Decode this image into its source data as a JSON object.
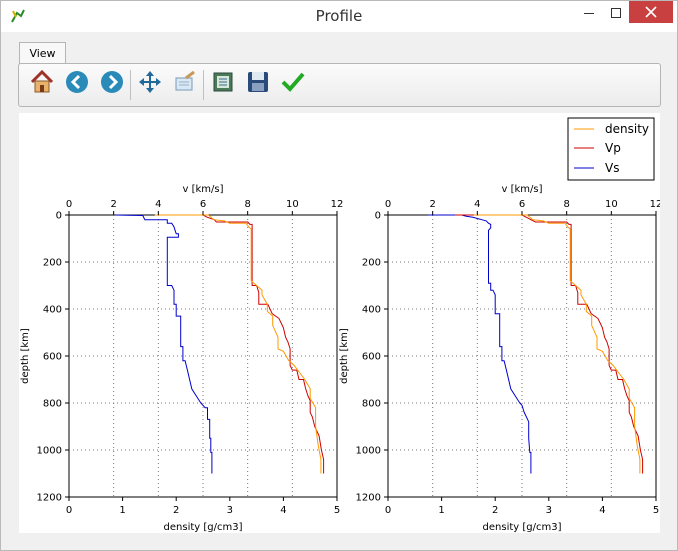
{
  "window": {
    "title": "Profile"
  },
  "tabs": [
    {
      "label": "View"
    }
  ],
  "toolbar": {
    "buttons": [
      {
        "name": "home-button",
        "icon": "home-icon",
        "tooltip": ""
      },
      {
        "name": "back-button",
        "icon": "back-arrow-icon"
      },
      {
        "name": "forward-button",
        "icon": "forward-arrow-icon"
      },
      {
        "name": "pan-button",
        "icon": "move-icon"
      },
      {
        "name": "zoom-button",
        "icon": "zoom-rect-icon"
      },
      {
        "name": "configure-button",
        "icon": "configure-subplots-icon"
      },
      {
        "name": "save-button",
        "icon": "save-disk-icon"
      },
      {
        "name": "confirm-button",
        "icon": "checkmark-icon"
      }
    ]
  },
  "colors": {
    "density": "#ff9900",
    "Vp": "#cc0000",
    "Vs": "#0000cc"
  },
  "chart_data": [
    {
      "type": "line",
      "top_xlabel": "v [km/s]",
      "bottom_xlabel": "density [g/cm3]",
      "ylabel": "depth [km]",
      "top_xlim": [
        0,
        12
      ],
      "top_xticks": [
        "0",
        "2",
        "4",
        "6",
        "8",
        "10",
        "12"
      ],
      "bottom_xlim": [
        0,
        5
      ],
      "bottom_xticks": [
        "0",
        "1",
        "2",
        "3",
        "4",
        "5"
      ],
      "ylim": [
        1200,
        0
      ],
      "yticks": [
        "0",
        "200",
        "400",
        "600",
        "800",
        "1000",
        "1200"
      ],
      "grid": true,
      "legend": {
        "placement": "top-right",
        "entries": [
          "density",
          "Vp",
          "Vs"
        ]
      },
      "series": [
        {
          "name": "Vs",
          "axis": "v",
          "points": [
            [
              2.1,
              0
            ],
            [
              3.3,
              2
            ],
            [
              3.4,
              20
            ],
            [
              4.4,
              20
            ],
            [
              4.4,
              35
            ],
            [
              4.6,
              35
            ],
            [
              4.7,
              50
            ],
            [
              4.8,
              80
            ],
            [
              4.9,
              80
            ],
            [
              4.9,
              95
            ],
            [
              4.8,
              95
            ],
            [
              4.4,
              95
            ],
            [
              4.4,
              300
            ],
            [
              4.6,
              300
            ],
            [
              4.7,
              320
            ],
            [
              4.7,
              380
            ],
            [
              4.8,
              380
            ],
            [
              4.8,
              430
            ],
            [
              5.0,
              430
            ],
            [
              5.0,
              560
            ],
            [
              5.1,
              560
            ],
            [
              5.1,
              620
            ],
            [
              5.2,
              620
            ],
            [
              5.3,
              660
            ],
            [
              5.4,
              700
            ],
            [
              5.5,
              740
            ],
            [
              5.7,
              770
            ],
            [
              5.9,
              800
            ],
            [
              6.1,
              820
            ],
            [
              6.2,
              820
            ],
            [
              6.2,
              870
            ],
            [
              6.3,
              870
            ],
            [
              6.3,
              950
            ],
            [
              6.35,
              950
            ],
            [
              6.35,
              1010
            ],
            [
              6.4,
              1010
            ],
            [
              6.4,
              1100
            ]
          ]
        },
        {
          "name": "Vp",
          "axis": "v",
          "points": [
            [
              3.9,
              0
            ],
            [
              6.0,
              0
            ],
            [
              6.2,
              10
            ],
            [
              6.5,
              20
            ],
            [
              6.6,
              30
            ],
            [
              8.0,
              30
            ],
            [
              8.1,
              40
            ],
            [
              8.2,
              40
            ],
            [
              8.2,
              300
            ],
            [
              8.4,
              300
            ],
            [
              8.5,
              330
            ],
            [
              8.5,
              380
            ],
            [
              8.9,
              380
            ],
            [
              9.1,
              420
            ],
            [
              9.4,
              440
            ],
            [
              9.5,
              460
            ],
            [
              9.6,
              480
            ],
            [
              9.7,
              520
            ],
            [
              9.8,
              540
            ],
            [
              9.9,
              570
            ],
            [
              9.9,
              640
            ],
            [
              10.0,
              660
            ],
            [
              10.2,
              660
            ],
            [
              10.3,
              700
            ],
            [
              10.5,
              700
            ],
            [
              10.6,
              740
            ],
            [
              10.7,
              770
            ],
            [
              10.8,
              790
            ],
            [
              10.8,
              840
            ],
            [
              10.9,
              860
            ],
            [
              11.0,
              900
            ],
            [
              11.2,
              940
            ],
            [
              11.3,
              1000
            ],
            [
              11.4,
              1040
            ],
            [
              11.4,
              1100
            ]
          ]
        },
        {
          "name": "density",
          "axis": "density",
          "points": [
            [
              1.6,
              0
            ],
            [
              2.6,
              0
            ],
            [
              2.7,
              20
            ],
            [
              2.9,
              25
            ],
            [
              3.0,
              35
            ],
            [
              3.3,
              35
            ],
            [
              3.35,
              50
            ],
            [
              3.4,
              60
            ],
            [
              3.4,
              170
            ],
            [
              3.4,
              280
            ],
            [
              3.5,
              300
            ],
            [
              3.6,
              320
            ],
            [
              3.6,
              340
            ],
            [
              3.7,
              380
            ],
            [
              3.7,
              410
            ],
            [
              3.8,
              430
            ],
            [
              3.8,
              470
            ],
            [
              3.9,
              520
            ],
            [
              3.9,
              570
            ],
            [
              4.0,
              580
            ],
            [
              4.1,
              620
            ],
            [
              4.2,
              640
            ],
            [
              4.3,
              670
            ],
            [
              4.4,
              700
            ],
            [
              4.5,
              740
            ],
            [
              4.5,
              780
            ],
            [
              4.6,
              820
            ],
            [
              4.6,
              900
            ],
            [
              4.65,
              980
            ],
            [
              4.7,
              1040
            ],
            [
              4.7,
              1100
            ]
          ]
        }
      ]
    },
    {
      "type": "line",
      "top_xlabel": "v [km/s]",
      "bottom_xlabel": "density [g/cm3]",
      "ylabel": "depth [km]",
      "top_xlim": [
        0,
        12
      ],
      "top_xticks": [
        "0",
        "2",
        "4",
        "6",
        "8",
        "10",
        "12"
      ],
      "bottom_xlim": [
        0,
        5
      ],
      "bottom_xticks": [
        "0",
        "1",
        "2",
        "3",
        "4",
        "5"
      ],
      "ylim": [
        1200,
        0
      ],
      "yticks": [
        "0",
        "200",
        "400",
        "600",
        "800",
        "1000",
        "1200"
      ],
      "grid": true,
      "series": [
        {
          "name": "Vs",
          "axis": "v",
          "points": [
            [
              1.8,
              0
            ],
            [
              3.3,
              0
            ],
            [
              3.5,
              5
            ],
            [
              3.8,
              10
            ],
            [
              4.0,
              15
            ],
            [
              4.2,
              20
            ],
            [
              4.4,
              25
            ],
            [
              4.5,
              35
            ],
            [
              4.6,
              40
            ],
            [
              4.6,
              55
            ],
            [
              4.5,
              65
            ],
            [
              4.5,
              290
            ],
            [
              4.6,
              290
            ],
            [
              4.6,
              320
            ],
            [
              4.7,
              320
            ],
            [
              4.8,
              340
            ],
            [
              4.8,
              420
            ],
            [
              5.0,
              420
            ],
            [
              5.0,
              560
            ],
            [
              5.1,
              560
            ],
            [
              5.1,
              620
            ],
            [
              5.2,
              620
            ],
            [
              5.3,
              660
            ],
            [
              5.4,
              700
            ],
            [
              5.5,
              740
            ],
            [
              5.7,
              770
            ],
            [
              5.9,
              800
            ],
            [
              6.0,
              810
            ],
            [
              6.1,
              840
            ],
            [
              6.2,
              860
            ],
            [
              6.3,
              880
            ],
            [
              6.3,
              950
            ],
            [
              6.35,
              1010
            ],
            [
              6.4,
              1010
            ],
            [
              6.4,
              1100
            ]
          ]
        },
        {
          "name": "Vp",
          "axis": "v",
          "points": [
            [
              3.0,
              0
            ],
            [
              6.0,
              0
            ],
            [
              6.2,
              10
            ],
            [
              6.4,
              20
            ],
            [
              6.6,
              30
            ],
            [
              8.0,
              30
            ],
            [
              8.1,
              40
            ],
            [
              8.2,
              40
            ],
            [
              8.2,
              300
            ],
            [
              8.4,
              300
            ],
            [
              8.5,
              330
            ],
            [
              8.5,
              380
            ],
            [
              8.9,
              380
            ],
            [
              9.1,
              420
            ],
            [
              9.4,
              440
            ],
            [
              9.5,
              460
            ],
            [
              9.6,
              480
            ],
            [
              9.7,
              520
            ],
            [
              9.8,
              540
            ],
            [
              9.9,
              570
            ],
            [
              9.9,
              640
            ],
            [
              10.0,
              660
            ],
            [
              10.2,
              660
            ],
            [
              10.3,
              700
            ],
            [
              10.5,
              700
            ],
            [
              10.6,
              740
            ],
            [
              10.7,
              770
            ],
            [
              10.8,
              790
            ],
            [
              10.8,
              840
            ],
            [
              10.9,
              860
            ],
            [
              11.0,
              900
            ],
            [
              11.2,
              940
            ],
            [
              11.3,
              1000
            ],
            [
              11.4,
              1040
            ],
            [
              11.4,
              1100
            ]
          ]
        },
        {
          "name": "density",
          "axis": "density",
          "points": [
            [
              1.6,
              0
            ],
            [
              2.6,
              0
            ],
            [
              2.7,
              20
            ],
            [
              2.9,
              25
            ],
            [
              3.0,
              35
            ],
            [
              3.3,
              35
            ],
            [
              3.35,
              50
            ],
            [
              3.4,
              60
            ],
            [
              3.4,
              280
            ],
            [
              3.5,
              300
            ],
            [
              3.6,
              320
            ],
            [
              3.6,
              340
            ],
            [
              3.7,
              380
            ],
            [
              3.7,
              410
            ],
            [
              3.8,
              430
            ],
            [
              3.8,
              470
            ],
            [
              3.9,
              520
            ],
            [
              3.9,
              570
            ],
            [
              4.0,
              580
            ],
            [
              4.1,
              620
            ],
            [
              4.2,
              640
            ],
            [
              4.3,
              670
            ],
            [
              4.4,
              700
            ],
            [
              4.5,
              740
            ],
            [
              4.5,
              780
            ],
            [
              4.6,
              820
            ],
            [
              4.6,
              900
            ],
            [
              4.65,
              980
            ],
            [
              4.7,
              1040
            ],
            [
              4.7,
              1100
            ]
          ]
        }
      ]
    }
  ]
}
